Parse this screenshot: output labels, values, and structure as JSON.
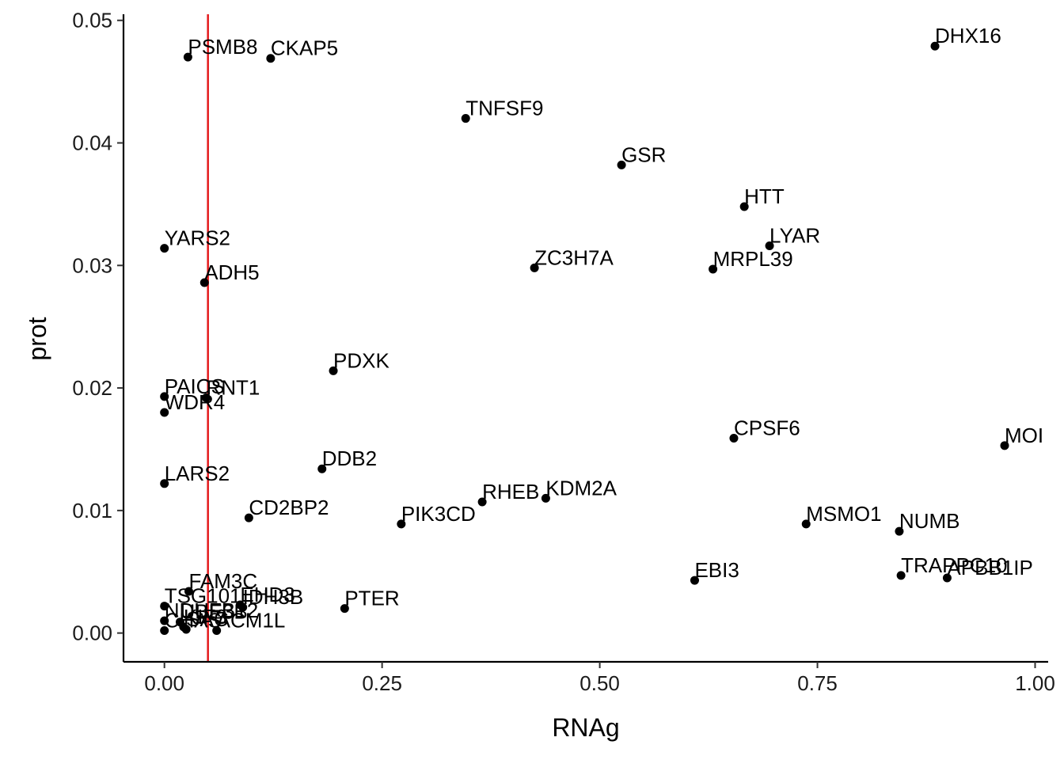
{
  "chart_data": {
    "type": "scatter",
    "title": "",
    "xlabel": "RNAg",
    "ylabel": "prot",
    "xlim": [
      -0.047,
      1.015
    ],
    "ylim": [
      -0.00235,
      0.0505
    ],
    "xticks": [
      0,
      0.25,
      0.5,
      0.75,
      1
    ],
    "xtick_labels": [
      "0.00",
      "0.25",
      "0.50",
      "0.75",
      "1.00"
    ],
    "yticks": [
      0,
      0.01,
      0.02,
      0.03,
      0.04,
      0.05
    ],
    "ytick_labels": [
      "0.00",
      "0.01",
      "0.02",
      "0.03",
      "0.04",
      "0.05"
    ],
    "grid": false,
    "legend": "none",
    "reference_line": {
      "orientation": "vertical",
      "x": 0.05,
      "color": "#e41a1c"
    },
    "point_color": "#000000",
    "points": [
      {
        "label": "DHX16",
        "x": 0.885,
        "y": 0.0479
      },
      {
        "label": "PSMB8",
        "x": 0.027,
        "y": 0.047
      },
      {
        "label": "CKAP5",
        "x": 0.122,
        "y": 0.0469
      },
      {
        "label": "TNFSF9",
        "x": 0.346,
        "y": 0.042
      },
      {
        "label": "GSR",
        "x": 0.525,
        "y": 0.0382
      },
      {
        "label": "HTT",
        "x": 0.666,
        "y": 0.0348
      },
      {
        "label": "LYAR",
        "x": 0.695,
        "y": 0.0316
      },
      {
        "label": "YARS2",
        "x": 0.0,
        "y": 0.0314
      },
      {
        "label": "ZC3H7A",
        "x": 0.425,
        "y": 0.0298
      },
      {
        "label": "MRPL39",
        "x": 0.63,
        "y": 0.0297
      },
      {
        "label": "ADH5",
        "x": 0.046,
        "y": 0.0286
      },
      {
        "label": "PDXK",
        "x": 0.194,
        "y": 0.0214
      },
      {
        "label": "PAICS",
        "x": 0.0,
        "y": 0.0193
      },
      {
        "label": "RNT1",
        "x": 0.048,
        "y": 0.0192
      },
      {
        "label": "WDR4",
        "x": 0.0,
        "y": 0.018
      },
      {
        "label": "CPSF6",
        "x": 0.654,
        "y": 0.0159
      },
      {
        "label": "MOI",
        "x": 0.965,
        "y": 0.0153
      },
      {
        "label": "DDB2",
        "x": 0.181,
        "y": 0.0134
      },
      {
        "label": "LARS2",
        "x": 0.0,
        "y": 0.0122
      },
      {
        "label": "KDM2A",
        "x": 0.438,
        "y": 0.011
      },
      {
        "label": "RHEB",
        "x": 0.365,
        "y": 0.0107
      },
      {
        "label": "CD2BP2",
        "x": 0.097,
        "y": 0.0094
      },
      {
        "label": "MSMO1",
        "x": 0.737,
        "y": 0.0089
      },
      {
        "label": "PIK3CD",
        "x": 0.272,
        "y": 0.0089
      },
      {
        "label": "NUMB",
        "x": 0.844,
        "y": 0.0083
      },
      {
        "label": "TRAPPC10",
        "x": 0.846,
        "y": 0.0047
      },
      {
        "label": "APBB1IP",
        "x": 0.899,
        "y": 0.0045
      },
      {
        "label": "EBI3",
        "x": 0.609,
        "y": 0.0043
      },
      {
        "label": "FAM3C",
        "x": 0.028,
        "y": 0.0034
      },
      {
        "label": "TSG101",
        "x": 0.0,
        "y": 0.0022
      },
      {
        "label": "EHD3",
        "x": 0.087,
        "y": 0.0023
      },
      {
        "label": "IDH3B",
        "x": 0.09,
        "y": 0.0021
      },
      {
        "label": "PTER",
        "x": 0.207,
        "y": 0.002
      },
      {
        "label": "NDUFB12",
        "x": 0.0,
        "y": 0.001
      },
      {
        "label": "UBE3B",
        "x": 0.018,
        "y": 0.0009
      },
      {
        "label": "KIF3",
        "x": 0.022,
        "y": 0.0005
      },
      {
        "label": "CHAS",
        "x": 0.0,
        "y": 0.0002
      },
      {
        "label": "SAC",
        "x": 0.025,
        "y": 0.0003
      },
      {
        "label": "ACM1L",
        "x": 0.06,
        "y": 0.0002
      }
    ]
  }
}
